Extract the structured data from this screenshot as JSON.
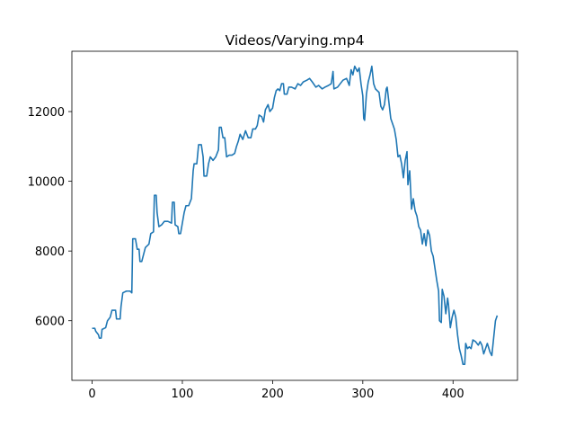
{
  "chart_data": {
    "type": "line",
    "title": "Videos/Varying.mp4",
    "x": [
      0,
      3,
      4,
      7,
      8,
      10,
      11,
      15,
      17,
      20,
      22,
      26,
      27,
      31,
      32,
      34,
      38,
      42,
      44,
      45,
      48,
      50,
      52,
      53,
      55,
      57,
      59,
      63,
      65,
      68,
      69,
      71,
      72,
      74,
      77,
      80,
      84,
      88,
      89,
      91,
      92,
      95,
      96,
      98,
      100,
      102,
      104,
      107,
      110,
      112,
      113,
      116,
      118,
      121,
      123,
      124,
      127,
      129,
      131,
      134,
      137,
      140,
      141,
      143,
      145,
      147,
      149,
      152,
      155,
      158,
      160,
      162,
      164,
      167,
      170,
      173,
      176,
      178,
      181,
      183,
      185,
      188,
      190,
      192,
      195,
      197,
      200,
      202,
      204,
      206,
      208,
      210,
      212,
      213,
      216,
      218,
      221,
      225,
      228,
      231,
      234,
      238,
      241,
      244,
      248,
      251,
      255,
      258,
      262,
      265,
      267,
      268,
      272,
      275,
      278,
      282,
      285,
      287,
      289,
      291,
      294,
      296,
      298,
      300,
      301,
      302,
      304,
      306,
      308,
      310,
      312,
      314,
      316,
      318,
      320,
      322,
      324,
      326,
      327,
      329,
      331,
      333,
      335,
      337,
      339,
      341,
      343,
      345,
      347,
      349,
      350,
      352,
      354,
      356,
      358,
      360,
      362,
      364,
      366,
      368,
      370,
      372,
      374,
      376,
      378,
      380,
      382,
      384,
      385,
      387,
      388,
      390,
      392,
      394,
      395,
      397,
      399,
      401,
      403,
      405,
      407,
      409,
      411,
      413,
      414,
      416,
      418,
      420,
      422,
      425,
      428,
      430,
      432,
      434,
      436,
      438,
      441,
      443,
      445,
      447,
      449
    ],
    "series": [
      {
        "name": "Videos/Varying.mp4",
        "color": "#1f77b4",
        "values": [
          5780,
          5780,
          5700,
          5600,
          5500,
          5500,
          5750,
          5800,
          6000,
          6100,
          6300,
          6300,
          6050,
          6050,
          6400,
          6800,
          6850,
          6850,
          6800,
          8350,
          8350,
          8050,
          8050,
          7700,
          7700,
          7900,
          8100,
          8200,
          8500,
          8550,
          9600,
          9600,
          9100,
          8700,
          8750,
          8850,
          8850,
          8800,
          9400,
          9400,
          8750,
          8700,
          8500,
          8500,
          8800,
          9100,
          9300,
          9300,
          9500,
          10300,
          10500,
          10500,
          11050,
          11050,
          10700,
          10150,
          10150,
          10500,
          10700,
          10600,
          10700,
          10900,
          11550,
          11550,
          11250,
          11250,
          10700,
          10750,
          10750,
          10800,
          11000,
          11150,
          11350,
          11200,
          11450,
          11250,
          11250,
          11500,
          11500,
          11600,
          11900,
          11850,
          11700,
          12050,
          12200,
          12000,
          12100,
          12400,
          12600,
          12650,
          12600,
          12800,
          12800,
          12500,
          12500,
          12700,
          12700,
          12650,
          12800,
          12750,
          12850,
          12900,
          12950,
          12850,
          12700,
          12750,
          12650,
          12700,
          12750,
          12800,
          13150,
          12650,
          12700,
          12800,
          12900,
          12950,
          12750,
          13200,
          13050,
          13300,
          13150,
          13250,
          12800,
          12450,
          11800,
          11750,
          12500,
          12850,
          13050,
          13300,
          12800,
          12650,
          12600,
          12550,
          12150,
          12050,
          12200,
          12650,
          12700,
          12250,
          11800,
          11650,
          11500,
          11200,
          10700,
          10750,
          10500,
          10100,
          10600,
          10850,
          9900,
          10300,
          9200,
          9500,
          9150,
          9000,
          8700,
          8600,
          8200,
          8500,
          8150,
          8600,
          8450,
          8000,
          7850,
          7500,
          7150,
          6850,
          6000,
          5950,
          6900,
          6700,
          6200,
          6650,
          6450,
          5800,
          6100,
          6300,
          6100,
          5600,
          5200,
          5000,
          4750,
          4750,
          5350,
          5200,
          5250,
          5200,
          5450,
          5400,
          5300,
          5400,
          5300,
          5050,
          5200,
          5350,
          5100,
          5000,
          5500,
          6000,
          6150
        ]
      }
    ],
    "xlim": [
      -22.45,
      471.45
    ],
    "ylim": [
      4290,
      13730
    ],
    "xticks": [
      0,
      100,
      200,
      300,
      400
    ],
    "yticks": [
      6000,
      8000,
      10000,
      12000
    ],
    "grid": false
  }
}
